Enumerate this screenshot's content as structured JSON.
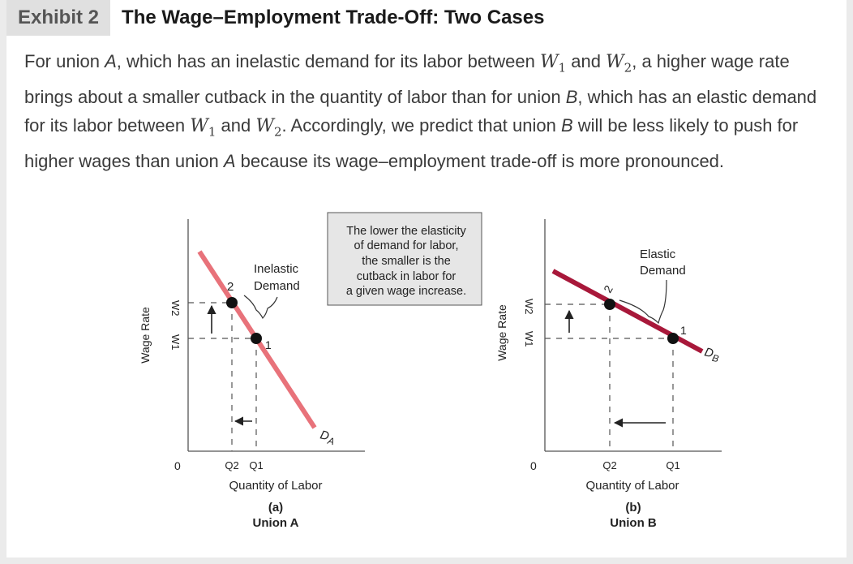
{
  "exhibit": {
    "label": "Exhibit 2",
    "title": "The Wage–Employment Trade-Off: Two Cases"
  },
  "caption": {
    "p1": "For union ",
    "unionA1": "A",
    "p2": ", which has an inelastic demand for its labor between ",
    "w1a": "W",
    "w1a_sub": "1",
    "p3": " and ",
    "w2a": "W",
    "w2a_sub": "2",
    "p4": ", a higher wage rate brings about a smaller cutback in the quantity of labor than for union ",
    "unionB1": "B",
    "p5": ", which has an elastic demand for its labor between ",
    "w1b": "W",
    "w1b_sub": "1",
    "p6": " and ",
    "w2b": "W",
    "w2b_sub": "2",
    "p7": ". Accordingly, we predict that union ",
    "unionB2": "B",
    "p8": " will be less likely to push for higher wages than union ",
    "unionA2": "A",
    "p9": " because its wage–employment trade-off is more pronounced."
  },
  "chart_data": [
    {
      "type": "line",
      "panel_letter": "(a)",
      "panel_name": "Union A",
      "xlabel": "Quantity of Labor",
      "ylabel": "Wage Rate",
      "origin_label": "0",
      "x_ticks": [
        "Q2",
        "Q1"
      ],
      "y_ticks": [
        "W2",
        "W1"
      ],
      "curve_label": "D",
      "curve_label_sub": "A",
      "curve_color": "#e8727a",
      "annotation": [
        "Inelastic",
        "Demand"
      ],
      "points": [
        {
          "label": "1",
          "x": "Q1",
          "y": "W1"
        },
        {
          "label": "2",
          "x": "Q2",
          "y": "W2"
        }
      ]
    },
    {
      "type": "line",
      "panel_letter": "(b)",
      "panel_name": "Union B",
      "xlabel": "Quantity of Labor",
      "ylabel": "Wage Rate",
      "origin_label": "0",
      "x_ticks": [
        "Q2",
        "Q1"
      ],
      "y_ticks": [
        "W2",
        "W1"
      ],
      "curve_label": "D",
      "curve_label_sub": "B",
      "curve_color": "#a8183a",
      "annotation": [
        "Elastic",
        "Demand"
      ],
      "points": [
        {
          "label": "1",
          "x": "Q1",
          "y": "W1"
        },
        {
          "label": "2",
          "x": "Q2",
          "y": "W2"
        }
      ]
    }
  ],
  "callout": {
    "lines": [
      "The lower the elasticity",
      "of demand for labor,",
      "the smaller is the",
      "cutback in labor for",
      "a given wage increase."
    ]
  }
}
